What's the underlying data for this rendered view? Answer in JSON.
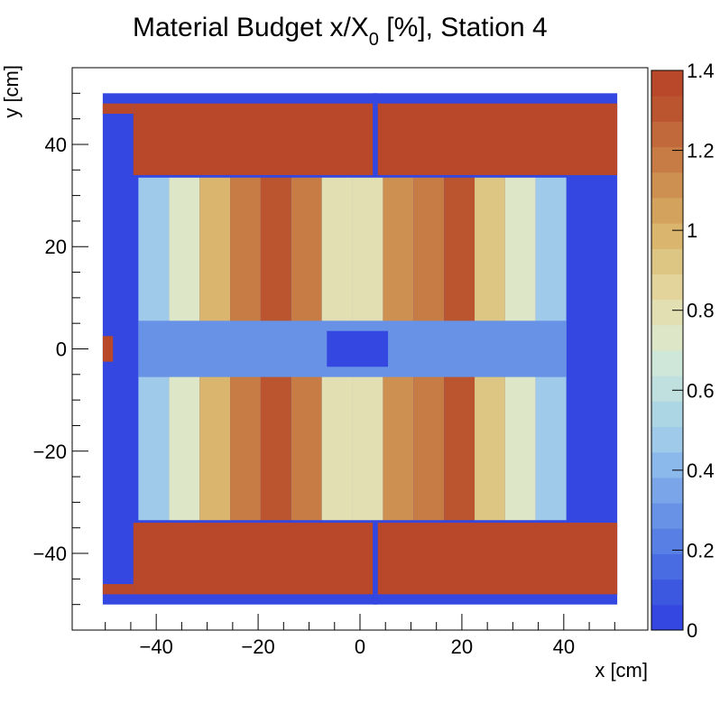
{
  "chart_data": {
    "type": "heatmap",
    "title_main": "Material Budget x/X",
    "title_sub": "0",
    "title_rest": " [%], Station 4",
    "xlabel": "x [cm]",
    "ylabel": "y [cm]",
    "xlim": [
      -56.5,
      56.5
    ],
    "ylim": [
      -55,
      55
    ],
    "x_ticks": [
      -40,
      -20,
      0,
      20,
      40
    ],
    "x_tick_labels": [
      "−40",
      "−20",
      "0",
      "20",
      "40"
    ],
    "y_ticks": [
      -40,
      -20,
      0,
      20,
      40
    ],
    "y_tick_labels": [
      "−40",
      "−20",
      "0",
      "20",
      "40"
    ],
    "z_range": [
      0,
      1.4
    ],
    "z_ticks": [
      0,
      0.2,
      0.4,
      0.6,
      0.8,
      1,
      1.2,
      1.4
    ],
    "z_tick_labels": [
      "0",
      "0.2",
      "0.4",
      "0.6",
      "0.8",
      "1",
      "1.2",
      "1.4"
    ],
    "palette": [
      "#3447e0",
      "#3d58e0",
      "#4a6ce2",
      "#587fe4",
      "#6792e6",
      "#7aa6e9",
      "#8cb9ec",
      "#9fcae9",
      "#acd6e3",
      "#bfe0de",
      "#cfe7d8",
      "#dde7c8",
      "#e2dfb2",
      "#e2d49b",
      "#ddc583",
      "#d9b56e",
      "#d3a35d",
      "#cd9050",
      "#c77c45",
      "#c1693a",
      "#bb5530",
      "#b84829"
    ],
    "regions": [
      {
        "x": [
          -50.5,
          50.5
        ],
        "y": [
          -50,
          50
        ],
        "z": 0.0
      },
      {
        "x": [
          -44.5,
          50.5
        ],
        "y": [
          34,
          48
        ],
        "z": 1.4
      },
      {
        "x": [
          -44.5,
          50.5
        ],
        "y": [
          -48,
          -34
        ],
        "z": 1.4
      },
      {
        "x": [
          -50.5,
          -44.5
        ],
        "y": [
          46,
          48
        ],
        "z": 1.4
      },
      {
        "x": [
          -50.5,
          -44.5
        ],
        "y": [
          -48,
          -46
        ],
        "z": 1.4
      },
      {
        "x": [
          -50.5,
          -48.5
        ],
        "y": [
          -2.5,
          2.5
        ],
        "z": 1.4
      },
      {
        "x": [
          2.5,
          3.5
        ],
        "y": [
          34,
          50
        ],
        "z": 0.0
      },
      {
        "x": [
          2.5,
          3.5
        ],
        "y": [
          -50,
          -34
        ],
        "z": 0.0
      },
      {
        "x": [
          -43.5,
          -37.5
        ],
        "y": [
          -33.5,
          33.5
        ],
        "z": 0.45
      },
      {
        "x": [
          -37.5,
          -31.5
        ],
        "y": [
          -33.5,
          33.5
        ],
        "z": 0.7
      },
      {
        "x": [
          -31.5,
          -25.5
        ],
        "y": [
          -33.5,
          33.5
        ],
        "z": 1.0
      },
      {
        "x": [
          -25.5,
          -19.5
        ],
        "y": [
          -33.5,
          33.5
        ],
        "z": 1.2
      },
      {
        "x": [
          -19.5,
          -13.5
        ],
        "y": [
          -33.5,
          33.5
        ],
        "z": 1.3
      },
      {
        "x": [
          -13.5,
          -7.5
        ],
        "y": [
          -33.5,
          33.5
        ],
        "z": 1.2
      },
      {
        "x": [
          -7.5,
          -1.5
        ],
        "y": [
          -33.5,
          33.5
        ],
        "z": 0.8
      },
      {
        "x": [
          -1.5,
          4.5
        ],
        "y": [
          -33.5,
          33.5
        ],
        "z": 0.8
      },
      {
        "x": [
          4.5,
          10.5
        ],
        "y": [
          -33.5,
          33.5
        ],
        "z": 1.1
      },
      {
        "x": [
          10.5,
          16.5
        ],
        "y": [
          -33.5,
          33.5
        ],
        "z": 1.2
      },
      {
        "x": [
          16.5,
          22.5
        ],
        "y": [
          -33.5,
          33.5
        ],
        "z": 1.3
      },
      {
        "x": [
          22.5,
          28.5
        ],
        "y": [
          -33.5,
          33.5
        ],
        "z": 0.9
      },
      {
        "x": [
          28.5,
          34.5
        ],
        "y": [
          -33.5,
          33.5
        ],
        "z": 0.7
      },
      {
        "x": [
          34.5,
          40.5
        ],
        "y": [
          -33.5,
          33.5
        ],
        "z": 0.5
      },
      {
        "x": [
          -43.5,
          40.5
        ],
        "y": [
          -5.5,
          5.5
        ],
        "z": 0.3
      },
      {
        "x": [
          -6.5,
          5.5
        ],
        "y": [
          -3.5,
          3.5
        ],
        "z": 0.0
      }
    ]
  }
}
